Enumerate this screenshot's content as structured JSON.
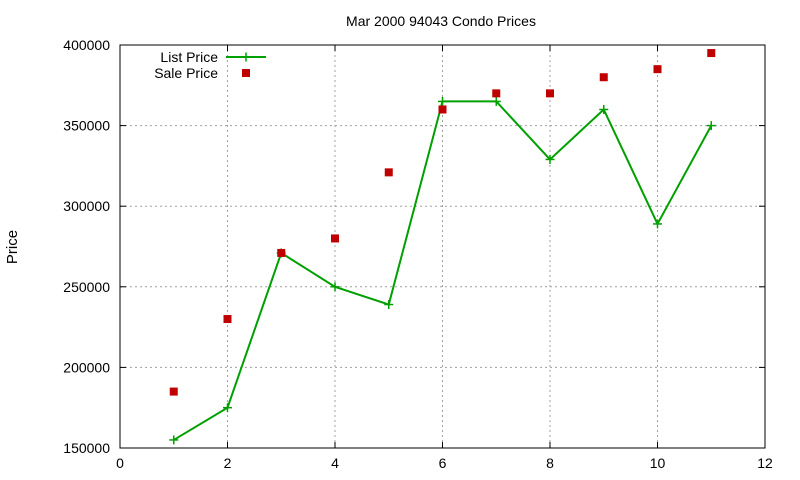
{
  "chart_data": {
    "type": "line",
    "title": "Mar 2000 94043 Condo Prices",
    "xlabel": "",
    "ylabel": "Price",
    "xlim": [
      0,
      12
    ],
    "ylim": [
      150000,
      400000
    ],
    "x_ticks": [
      0,
      2,
      4,
      6,
      8,
      10,
      12
    ],
    "y_ticks": [
      150000,
      200000,
      250000,
      300000,
      350000,
      400000
    ],
    "grid": true,
    "legend_position": "top-left",
    "series": [
      {
        "name": "List Price",
        "style": "lines+crosses",
        "color": "#00a000",
        "points": [
          {
            "x": 1,
            "y": 155000
          },
          {
            "x": 2,
            "y": 175000
          },
          {
            "x": 3,
            "y": 271000
          },
          {
            "x": 4,
            "y": 250000
          },
          {
            "x": 5,
            "y": 239000
          },
          {
            "x": 6,
            "y": 365000
          },
          {
            "x": 7,
            "y": 365000
          },
          {
            "x": 8,
            "y": 329000
          },
          {
            "x": 9,
            "y": 360000
          },
          {
            "x": 10,
            "y": 289000
          },
          {
            "x": 11,
            "y": 350000
          }
        ]
      },
      {
        "name": "Sale Price",
        "style": "squares",
        "color": "#c00000",
        "points": [
          {
            "x": 1,
            "y": 185000
          },
          {
            "x": 2,
            "y": 230000
          },
          {
            "x": 3,
            "y": 271000
          },
          {
            "x": 4,
            "y": 280000
          },
          {
            "x": 5,
            "y": 321000
          },
          {
            "x": 6,
            "y": 360000
          },
          {
            "x": 7,
            "y": 370000
          },
          {
            "x": 8,
            "y": 370000
          },
          {
            "x": 9,
            "y": 380000
          },
          {
            "x": 10,
            "y": 385000
          },
          {
            "x": 11,
            "y": 395000
          }
        ]
      }
    ]
  }
}
